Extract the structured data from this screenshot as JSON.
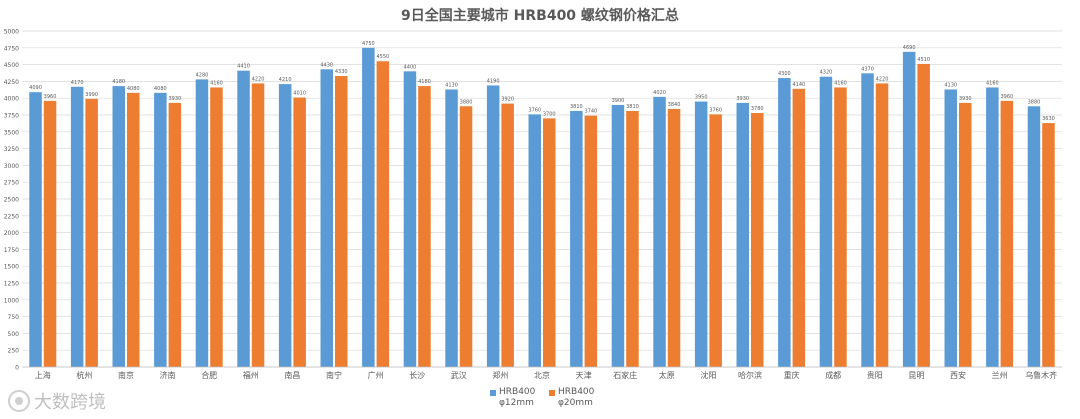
{
  "chart_data": {
    "type": "bar",
    "title": "9日全国主要城市 HRB400 螺纹钢价格汇总",
    "xlabel": "",
    "ylabel": "",
    "ylim": [
      0,
      5000
    ],
    "yticks": [
      0,
      250,
      500,
      750,
      1000,
      1250,
      1500,
      1750,
      2000,
      2250,
      2500,
      2750,
      3000,
      3250,
      3500,
      3750,
      4000,
      4250,
      4500,
      4750,
      5000
    ],
    "grid": true,
    "legend_position": "bottom",
    "categories": [
      "上海",
      "杭州",
      "南京",
      "济南",
      "合肥",
      "福州",
      "南昌",
      "南宁",
      "广州",
      "长沙",
      "武汉",
      "郑州",
      "北京",
      "天津",
      "石家庄",
      "太原",
      "沈阳",
      "哈尔滨",
      "重庆",
      "成都",
      "贵阳",
      "昆明",
      "西安",
      "兰州",
      "乌鲁木齐"
    ],
    "series": [
      {
        "name": "HRB400 φ12mm",
        "color": "#5B9BD5",
        "values": [
          4090,
          4170,
          4180,
          4080,
          4280,
          4410,
          4210,
          4430,
          4750,
          4400,
          4130,
          4190,
          3760,
          3810,
          3900,
          4020,
          3950,
          3930,
          4300,
          4320,
          4370,
          4690,
          4130,
          4160,
          3880
        ]
      },
      {
        "name": "HRB400 φ20mm",
        "color": "#ED7D31",
        "values": [
          3960,
          3990,
          4080,
          3930,
          4160,
          4220,
          4010,
          4330,
          4550,
          4180,
          3880,
          3920,
          3700,
          3740,
          3810,
          3840,
          3760,
          3780,
          4140,
          4160,
          4220,
          4510,
          3930,
          3960,
          3630
        ]
      }
    ]
  },
  "legend": [
    {
      "line1": "HRB400",
      "line2": "φ12mm",
      "color": "#5B9BD5"
    },
    {
      "line1": "HRB400",
      "line2": "φ20mm",
      "color": "#ED7D31"
    }
  ],
  "watermark": {
    "text": "大数跨境",
    "icon": "brand-logo-icon"
  }
}
